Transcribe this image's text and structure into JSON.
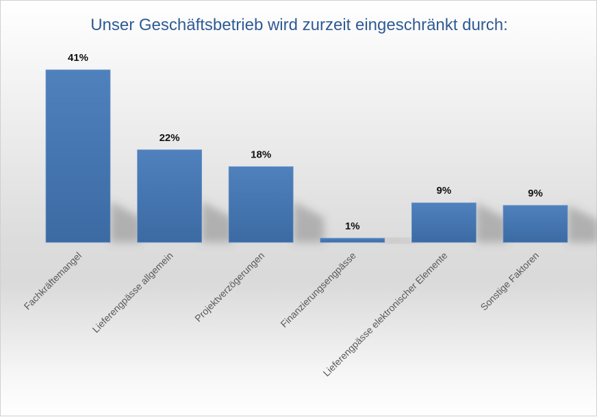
{
  "chart_data": {
    "type": "bar",
    "title": "Unser Geschäftsbetrieb wird zurzeit eingeschränkt durch:",
    "categories": [
      "Fachkräftemangel",
      "Lieferengpässe allgemein",
      "Projektverzögerungen",
      "Finanzierungsengpässe",
      "Lieferengpässe elektronischer Elemente",
      "Sonstige Faktoren"
    ],
    "values": [
      41,
      22,
      18,
      1,
      9.4,
      8.8
    ],
    "data_labels": [
      "41%",
      "22%",
      "18%",
      "1%",
      "9%",
      "9%"
    ],
    "xlabel": "",
    "ylabel": "",
    "ylim": [
      0,
      45
    ],
    "grid": false,
    "legend": "none",
    "bar_color": "#4a7ab8"
  }
}
